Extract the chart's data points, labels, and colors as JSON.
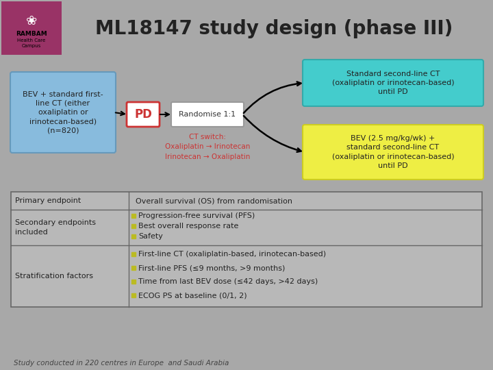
{
  "title": "ML18147 study design (phase III)",
  "bg_color": "#a8a8a8",
  "title_color": "#222222",
  "box_bev_text": "BEV + standard first-\nline CT (either\noxaliplatin or\nirinotecan-based)\n(n=820)",
  "box_bev_facecolor": "#88BBDD",
  "box_bev_edgecolor": "#6699BB",
  "box_pd_text": "PD",
  "box_pd_facecolor": "#FFFFFF",
  "box_pd_edgecolor": "#CC3333",
  "box_pd_textcolor": "#CC3333",
  "box_rand_text": "Randomise 1:1",
  "box_rand_facecolor": "#FFFFFF",
  "box_rand_edgecolor": "#999999",
  "box_top_text": "Standard second-line CT\n(oxaliplatin or irinotecan-based)\nuntil PD",
  "box_top_facecolor": "#44CCCC",
  "box_top_edgecolor": "#33AAAA",
  "box_bot_text": "BEV (2.5 mg/kg/wk) +\nstandard second-line CT\n(oxaliplatin or irinotecan-based)\nuntil PD",
  "box_bot_facecolor": "#EEEE44",
  "box_bot_edgecolor": "#CCCC22",
  "ct_switch_text": "CT switch:\nOxaliplatin → Irinotecan\nIrinotecan → Oxaliplatin",
  "ct_switch_color": "#CC3333",
  "table_rows": [
    {
      "col1": "Primary endpoint",
      "col2": "Overall survival (OS) from randomisation",
      "col2_bullets": []
    },
    {
      "col1": "Secondary endpoints\nincluded",
      "col2": "",
      "col2_bullets": [
        "Progression-free survival (PFS)",
        "Best overall response rate",
        "Safety"
      ]
    },
    {
      "col1": "Stratification factors",
      "col2": "",
      "col2_bullets": [
        "First-line CT (oxaliplatin-based, irinotecan-based)",
        "First-line PFS (≤9 months, >9 months)",
        "Time from last BEV dose (≤42 days, >42 days)",
        "ECOG PS at baseline (0/1, 2)"
      ]
    }
  ],
  "table_line_color": "#666666",
  "table_bg_color": "#b8b8b8",
  "bullet_color": "#BBBB22",
  "footnote": "Study conducted in 220 centres in Europe  and Saudi Arabia",
  "footnote_color": "#444444",
  "logo_bg": "#993366",
  "logo_inner": "#aa4477"
}
